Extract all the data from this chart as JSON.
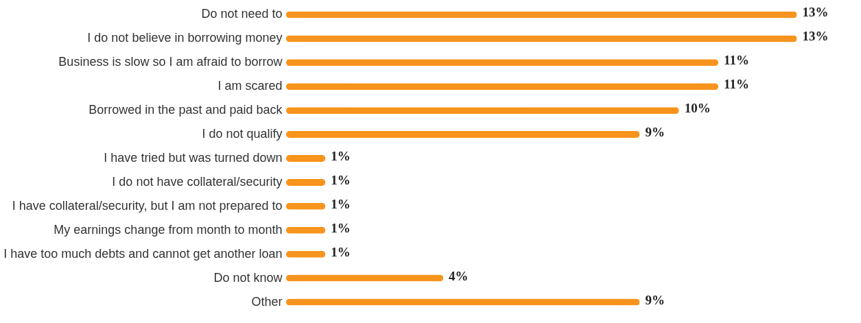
{
  "chart_data": {
    "type": "bar",
    "orientation": "horizontal",
    "categories": [
      "Do not need to",
      "I do not believe in borrowing money",
      "Business is slow so I am afraid to borrow",
      "I am scared",
      "Borrowed in the past and paid back",
      "I do not qualify",
      "I have tried but was turned down",
      "I do not have collateral/security",
      "I have collateral/security, but I am not prepared to",
      "My earnings change from month to month",
      "I have too much debts and cannot get another loan",
      "Do not know",
      "Other"
    ],
    "values": [
      13,
      13,
      11,
      11,
      10,
      9,
      1,
      1,
      1,
      1,
      1,
      4,
      9
    ],
    "value_labels": [
      "13%",
      "13%",
      "11%",
      "11%",
      "10%",
      "9%",
      "1%",
      "1%",
      "1%",
      "1%",
      "1%",
      "4%",
      "9%"
    ],
    "color": "#f7941d",
    "grid": false
  }
}
